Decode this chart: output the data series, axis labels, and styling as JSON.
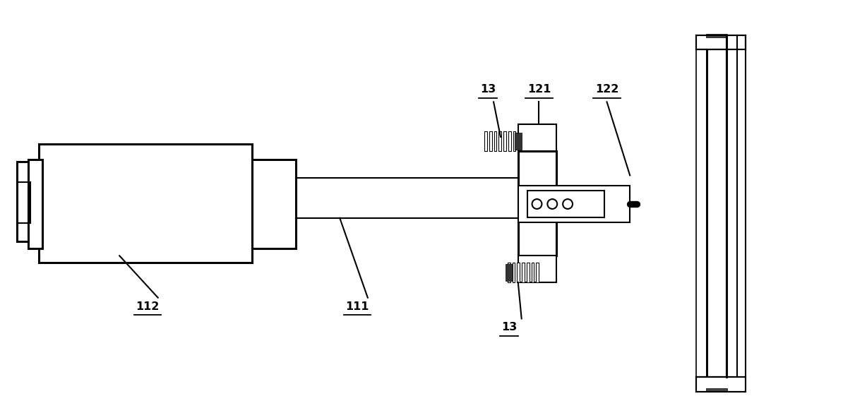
{
  "bg_color": "#ffffff",
  "lc": "#000000",
  "lw": 1.5,
  "tlw": 2.2,
  "fig_width": 12.11,
  "fig_height": 5.78,
  "dpi": 100
}
